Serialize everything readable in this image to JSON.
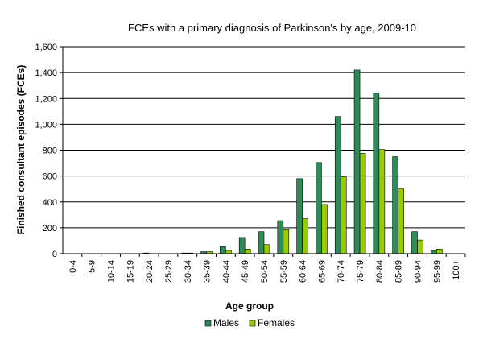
{
  "chart_data": {
    "type": "bar",
    "title": "FCEs with a primary diagnosis of Parkinson's by age, 2009-10",
    "xlabel": "Age group",
    "ylabel": "Finished consultant episodes (FCEs)",
    "ylim": [
      0,
      1600
    ],
    "yticks": [
      "0",
      "200",
      "400",
      "600",
      "800",
      "1,000",
      "1,200",
      "1,400",
      "1,600"
    ],
    "ytick_values": [
      0,
      200,
      400,
      600,
      800,
      1000,
      1200,
      1400,
      1600
    ],
    "grid": true,
    "legend_position": "bottom",
    "categories": [
      "0-4",
      "5-9",
      "10-14",
      "15-19",
      "20-24",
      "25-29",
      "30-34",
      "35-39",
      "40-44",
      "45-49",
      "50-54",
      "55-59",
      "60-64",
      "65-69",
      "70-74",
      "75-79",
      "80-84",
      "85-89",
      "90-94",
      "95-99",
      "100+"
    ],
    "series": [
      {
        "name": "Males",
        "color": "#2e8b57",
        "values": [
          0,
          0,
          0,
          0,
          5,
          0,
          5,
          15,
          55,
          125,
          170,
          255,
          580,
          705,
          1060,
          1420,
          1240,
          750,
          170,
          25,
          0
        ]
      },
      {
        "name": "Females",
        "color": "#99cc00",
        "values": [
          0,
          0,
          0,
          0,
          0,
          0,
          5,
          15,
          25,
          35,
          70,
          185,
          270,
          380,
          595,
          775,
          805,
          500,
          105,
          35,
          0
        ]
      }
    ]
  }
}
